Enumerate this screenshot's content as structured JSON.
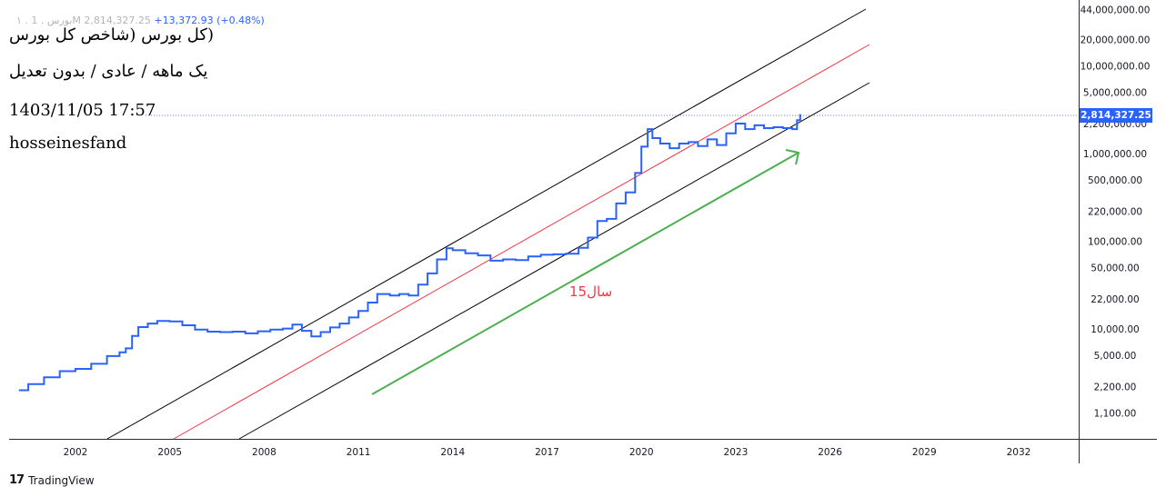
{
  "legend": {
    "symbol": "۱ . بورس . 1M",
    "price": "2,814,327.25",
    "change": "+13,372.93 (+0.48%)"
  },
  "overlay": {
    "line1": "(کل بورس (شاخص کل بورس",
    "line2": "یک ماهه / عادی / بدون تعدیل",
    "line3": "1403/11/05 17:57",
    "line4": "hosseinesfand"
  },
  "annotation": "15سال",
  "last_price_label": "2,814,327.25",
  "branding": "TradingView",
  "colors": {
    "price_line": "#2962ff",
    "channel": "#000000",
    "midline": "#f23645",
    "arrow": "#4caf50",
    "annotation": "#f23645"
  },
  "chart_data": {
    "type": "line",
    "scale": "log",
    "x_ticks": [
      "2002",
      "2005",
      "2008",
      "2011",
      "2014",
      "2017",
      "2020",
      "2023",
      "2026",
      "2029",
      "2032"
    ],
    "y_ticks": [
      "44,000,000.00",
      "20,000,000.00",
      "10,000,000.00",
      "5,000,000.00",
      "2,200,000.00",
      "1,000,000.00",
      "500,000.00",
      "220,000.00",
      "100,000.00",
      "50,000.00",
      "22,000.00",
      "10,000.00",
      "5,000.00",
      "2,200.00",
      "1,100.00"
    ],
    "y_tick_values": [
      44000000,
      20000000,
      10000000,
      5000000,
      2200000,
      1000000,
      500000,
      220000,
      100000,
      50000,
      22000,
      10000,
      5000,
      2200,
      1100
    ],
    "xlim": [
      2000.2,
      2034.4
    ],
    "ylim": [
      700,
      48000000
    ],
    "series": [
      {
        "x": [
          2000.2,
          2000.5,
          2001.0,
          2001.5,
          2002.0,
          2002.5,
          2003.0,
          2003.4,
          2003.6,
          2003.8,
          2004.0,
          2004.3,
          2004.6,
          2005.0,
          2005.4,
          2005.8,
          2006.2,
          2006.6,
          2007.0,
          2007.4,
          2007.8,
          2008.2,
          2008.6,
          2008.9,
          2009.2,
          2009.5,
          2009.8,
          2010.1,
          2010.4,
          2010.7,
          2011.0,
          2011.3,
          2011.6,
          2012.0,
          2012.3,
          2012.6,
          2012.9,
          2013.2,
          2013.5,
          2013.8,
          2014.0,
          2014.4,
          2014.8,
          2015.2,
          2015.6,
          2016.0,
          2016.4,
          2016.8,
          2017.2,
          2017.6,
          2018.0,
          2018.3,
          2018.6,
          2018.9,
          2019.2,
          2019.5,
          2019.8,
          2020.0,
          2020.2,
          2020.35,
          2020.6,
          2020.9,
          2021.2,
          2021.5,
          2021.8,
          2022.1,
          2022.4,
          2022.7,
          2023.0,
          2023.3,
          2023.6,
          2023.9,
          2024.2,
          2024.5,
          2024.8,
          2024.95,
          2025.05
        ],
        "y": [
          2000,
          2350,
          2800,
          3300,
          3500,
          4000,
          4900,
          5400,
          6000,
          8300,
          10500,
          11500,
          12300,
          12200,
          11000,
          9800,
          9300,
          9200,
          9300,
          8900,
          9400,
          9800,
          10100,
          11200,
          9500,
          8200,
          9200,
          10400,
          11500,
          13500,
          16000,
          20000,
          25000,
          24000,
          25000,
          24000,
          32000,
          43000,
          62000,
          83000,
          79000,
          73000,
          69000,
          60000,
          62000,
          61000,
          67000,
          70000,
          71000,
          72000,
          84000,
          110000,
          170000,
          180000,
          270000,
          360000,
          600000,
          1200000,
          1900000,
          1500000,
          1300000,
          1150000,
          1300000,
          1350000,
          1220000,
          1450000,
          1250000,
          1700000,
          2200000,
          1900000,
          2100000,
          1950000,
          2000000,
          1950000,
          1900000,
          2400000,
          2814327
        ]
      }
    ]
  }
}
